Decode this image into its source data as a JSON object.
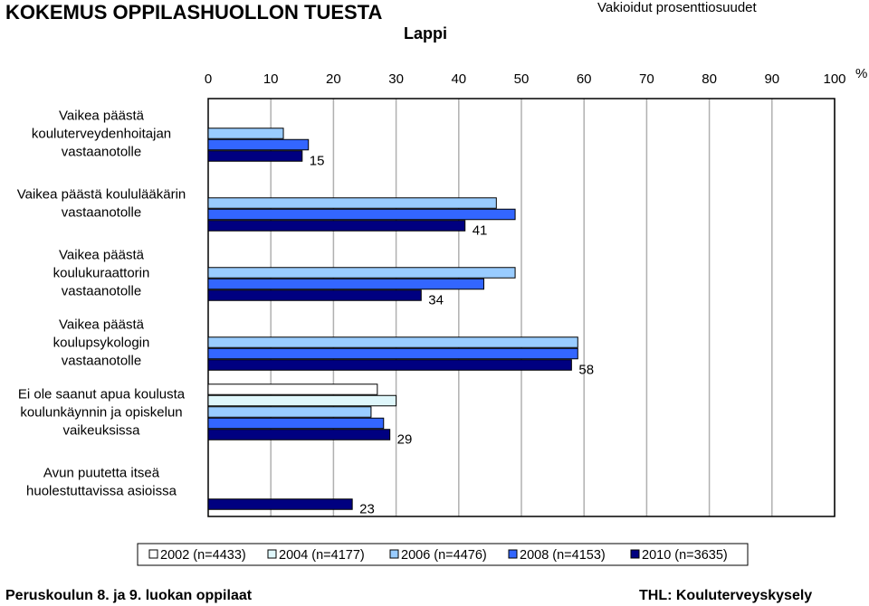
{
  "header": {
    "title": "KOKEMUS OPPILASHUOLLON TUESTA",
    "subtitle": "Vakioidut prosenttiosuudet",
    "region": "Lappi"
  },
  "footer": {
    "left": "Peruskoulun 8. ja 9. luokan oppilaat",
    "right": "THL: Kouluterveyskysely"
  },
  "chart_data": {
    "type": "bar",
    "orientation": "horizontal",
    "unit": "%",
    "xlim": [
      0,
      100
    ],
    "xticks": [
      0,
      10,
      20,
      30,
      40,
      50,
      60,
      70,
      80,
      90,
      100
    ],
    "grid": true,
    "legend_position": "bottom",
    "categories": [
      [
        "Vaikea päästä",
        "kouluterveydenhoitajan",
        "vastaanotolle"
      ],
      [
        "Vaikea päästä koululääkärin",
        "vastaanotolle"
      ],
      [
        "Vaikea päästä",
        "koulukuraattorin",
        "vastaanotolle"
      ],
      [
        "Vaikea päästä",
        "koulupsykologin",
        "vastaanotolle"
      ],
      [
        "Ei ole saanut apua koulusta",
        "koulunkäynnin ja opiskelun",
        "vaikeuksissa"
      ],
      [
        "Avun puutetta itseä",
        "huolestuttavissa asioissa"
      ]
    ],
    "series": [
      {
        "name": "2002 (n=4433)",
        "color": "#ffffff",
        "values": [
          null,
          null,
          null,
          null,
          27,
          null
        ]
      },
      {
        "name": "2004 (n=4177)",
        "color": "#dff7fb",
        "values": [
          null,
          null,
          null,
          null,
          30,
          null
        ]
      },
      {
        "name": "2006 (n=4476)",
        "color": "#99ccff",
        "values": [
          12,
          46,
          49,
          59,
          26,
          null
        ]
      },
      {
        "name": "2008 (n=4153)",
        "color": "#3366ff",
        "values": [
          16,
          49,
          44,
          59,
          28,
          null
        ]
      },
      {
        "name": "2010 (n=3635)",
        "color": "#000080",
        "values": [
          15,
          41,
          34,
          58,
          29,
          23
        ]
      }
    ],
    "data_labels": [
      "15",
      "41",
      "34",
      "58",
      "29",
      "23"
    ]
  }
}
